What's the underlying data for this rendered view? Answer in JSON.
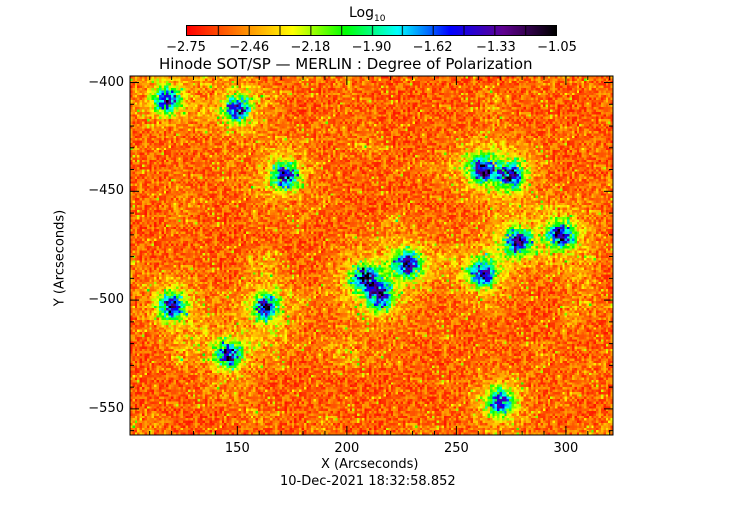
{
  "chart_data": {
    "type": "heatmap",
    "title": "Hinode SOT/SP — MERLIN : Degree of Polarization",
    "xlabel": "X (Arcseconds)",
    "ylabel": "Y (Arcseconds)",
    "xlim": [
      101,
      321.5
    ],
    "ylim": [
      -562,
      -397
    ],
    "xticks": [
      150,
      200,
      250,
      300
    ],
    "yticks": [
      -400,
      -450,
      -500,
      -550
    ],
    "xtick_labels": [
      "150",
      "200",
      "250",
      "300"
    ],
    "ytick_labels": [
      "−400",
      "−450",
      "−500",
      "−550"
    ],
    "colorbar": {
      "label": "Log",
      "label_sub": "10",
      "range": [
        -2.75,
        -1.05
      ],
      "ticks": [
        -2.75,
        -2.46,
        -2.18,
        -1.9,
        -1.62,
        -1.33,
        -1.05
      ],
      "tick_labels": [
        "−2.75",
        "−2.46",
        "−2.18",
        "−1.90",
        "−1.62",
        "−1.33",
        "−1.05"
      ],
      "colormap": [
        "#ff0000",
        "#ff8000",
        "#ffff00",
        "#00ff00",
        "#00ffff",
        "#0000ff",
        "#600090",
        "#000000"
      ]
    },
    "high_polarization_regions": [
      {
        "x": 172,
        "y": -443
      },
      {
        "x": 262,
        "y": -440
      },
      {
        "x": 275,
        "y": -443
      },
      {
        "x": 208,
        "y": -490
      },
      {
        "x": 215,
        "y": -498
      },
      {
        "x": 228,
        "y": -483
      },
      {
        "x": 262,
        "y": -488
      },
      {
        "x": 278,
        "y": -473
      },
      {
        "x": 270,
        "y": -547
      },
      {
        "x": 146,
        "y": -525
      },
      {
        "x": 163,
        "y": -503
      },
      {
        "x": 120,
        "y": -503
      },
      {
        "x": 298,
        "y": -470
      },
      {
        "x": 118,
        "y": -408
      },
      {
        "x": 150,
        "y": -412
      }
    ],
    "timestamp": "10-Dec-2021 18:32:58.852"
  }
}
